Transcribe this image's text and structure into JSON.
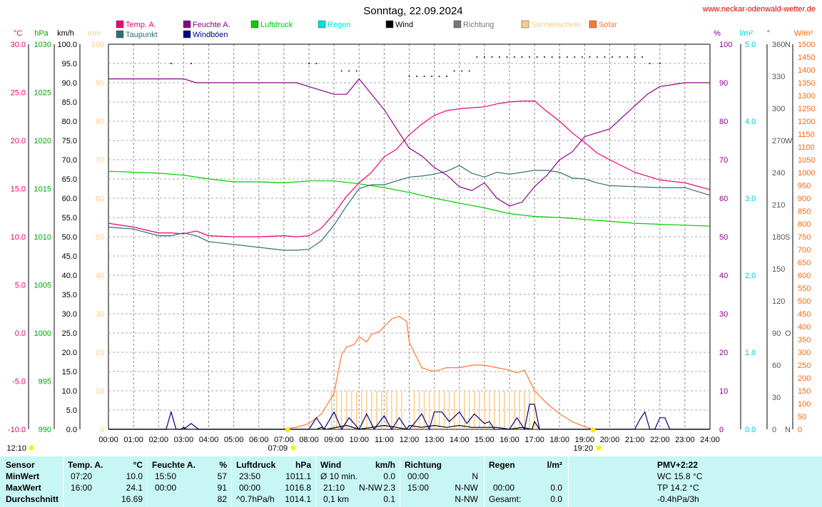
{
  "header": {
    "title": "Sonntag, 22.09.2024",
    "website": "www.neckar-odenwald-wetter.de"
  },
  "legend": [
    {
      "label": "Temp. A.",
      "color": "#ee0077"
    },
    {
      "label": "Taupunkt",
      "color": "#2f6f6f"
    },
    {
      "label": "Feuchte A.",
      "color": "#880088"
    },
    {
      "label": "Windböen",
      "color": "#000088"
    },
    {
      "label": "Luftdruck",
      "color": "#00cc00"
    },
    {
      "label": "Regen",
      "color": "#00e0e0"
    },
    {
      "label": "Wind",
      "color": "#000000"
    },
    {
      "label": "Richtung",
      "color": "#777777"
    },
    {
      "label": "Sonnenschein",
      "color": "#ffcc88"
    },
    {
      "label": "Solar",
      "color": "#ff7733"
    }
  ],
  "chart_data": {
    "type": "line",
    "title": "Sonntag, 22.09.2024",
    "x_labels": [
      "00:00",
      "01:00",
      "02:00",
      "03:00",
      "04:00",
      "05:00",
      "06:00",
      "07:00",
      "08:00",
      "09:00",
      "10:00",
      "11:00",
      "12:00",
      "13:00",
      "14:00",
      "15:00",
      "16:00",
      "17:00",
      "18:00",
      "19:00",
      "20:00",
      "21:00",
      "22:00",
      "23:00",
      "24:00"
    ],
    "x_range_hours": [
      0,
      24
    ],
    "axes": {
      "temp": {
        "unit": "°C",
        "color": "#ee0077",
        "min": -10,
        "max": 30,
        "ticks": [
          "30.0",
          "25.0",
          "20.0",
          "15.0",
          "10.0",
          "5.0",
          "0.0",
          "-5.0",
          "-10.0"
        ]
      },
      "pressure": {
        "unit": "hPa",
        "color": "#00aa00",
        "min": 990,
        "max": 1030,
        "ticks": [
          "1030",
          "1025",
          "1020",
          "1015",
          "1010",
          "1005",
          "1000",
          "995",
          "990"
        ]
      },
      "wind": {
        "unit": "km/h",
        "color": "#000000",
        "min": 0,
        "max": 100,
        "ticks": [
          "100.0",
          "95.0",
          "90.0",
          "85.0",
          "80.0",
          "75.0",
          "70.0",
          "65.0",
          "60.0",
          "55.0",
          "50.0",
          "45.0",
          "40.0",
          "35.0",
          "30.0",
          "25.0",
          "20.0",
          "15.0",
          "10.0",
          "5.0",
          "0.0"
        ]
      },
      "sunshine": {
        "unit": "min",
        "color": "#ffcc88",
        "min": 0,
        "max": 100,
        "ticks": [
          "100",
          "90",
          "80",
          "70",
          "60",
          "50",
          "40",
          "30",
          "20",
          "10",
          "0"
        ]
      },
      "humidity": {
        "unit": "%",
        "color": "#880088",
        "min": 0,
        "max": 100,
        "ticks": [
          "100",
          "90",
          "80",
          "70",
          "60",
          "50",
          "40",
          "30",
          "20",
          "10",
          "0"
        ]
      },
      "rain": {
        "unit": "l/m²",
        "color": "#00cccc",
        "min": 0,
        "max": 5,
        "ticks": [
          "5.0",
          "4.0",
          "3.0",
          "2.0",
          "1.0",
          "0.0"
        ]
      },
      "direction": {
        "unit": "°",
        "color": "#555555",
        "min": 0,
        "max": 360,
        "ticks": [
          "360",
          "330",
          "300",
          "270",
          "240",
          "210",
          "180",
          "150",
          "120",
          "90",
          "60",
          "30",
          "0"
        ],
        "compass": [
          "N",
          "W",
          "S",
          "O",
          "N"
        ]
      },
      "solar": {
        "unit": "W/m²",
        "color": "#ff6600",
        "min": 0,
        "max": 1500,
        "ticks": [
          "1500",
          "1450",
          "1400",
          "1350",
          "1300",
          "1250",
          "1200",
          "1150",
          "1100",
          "1050",
          "1000",
          "950",
          "900",
          "850",
          "800",
          "750",
          "700",
          "650",
          "600",
          "550",
          "500",
          "450",
          "400",
          "350",
          "300",
          "250",
          "200",
          "150",
          "100",
          "50",
          "0"
        ]
      }
    },
    "series": [
      {
        "name": "Temp. A.",
        "axis": "temp",
        "color": "#ee0077",
        "x": [
          0,
          1,
          2,
          2.5,
          3,
          3.5,
          4,
          5,
          6,
          7,
          7.5,
          8,
          8.5,
          9,
          9.5,
          10,
          10.5,
          11,
          11.5,
          12,
          12.5,
          13,
          13.5,
          14,
          14.5,
          15,
          15.5,
          16,
          16.5,
          17,
          17.5,
          18,
          18.5,
          19,
          19.5,
          20,
          21,
          22,
          23,
          24
        ],
        "y": [
          11.4,
          11.0,
          10.4,
          10.4,
          10.3,
          10.6,
          10.1,
          10.0,
          10.0,
          10.1,
          10.0,
          10.1,
          10.9,
          12.4,
          14.2,
          15.6,
          16.7,
          18.3,
          19.1,
          20.6,
          21.7,
          22.6,
          23.1,
          23.3,
          23.4,
          23.5,
          23.8,
          24.0,
          24.1,
          24.1,
          23.0,
          22.0,
          20.8,
          19.8,
          18.7,
          18.0,
          16.7,
          15.9,
          15.6,
          14.9
        ]
      },
      {
        "name": "Taupunkt",
        "axis": "temp",
        "color": "#2f6f6f",
        "x": [
          0,
          1,
          2,
          2.5,
          3,
          3.5,
          4,
          5,
          6,
          7,
          7.5,
          8,
          8.5,
          9,
          9.5,
          10,
          10.5,
          11,
          11.5,
          12,
          12.5,
          13,
          13.5,
          14,
          14.5,
          15,
          15.5,
          16,
          16.5,
          17,
          17.5,
          18,
          18.5,
          19,
          19.5,
          20,
          21,
          22,
          23,
          24
        ],
        "y": [
          11.0,
          10.8,
          10.1,
          10.1,
          10.4,
          10.1,
          9.5,
          9.2,
          8.9,
          8.6,
          8.6,
          8.7,
          9.6,
          11.2,
          13.2,
          15.0,
          15.4,
          15.4,
          15.8,
          16.2,
          16.3,
          16.5,
          16.8,
          17.4,
          16.6,
          16.2,
          16.7,
          16.5,
          16.7,
          16.9,
          16.9,
          16.7,
          16.1,
          16.0,
          15.6,
          15.3,
          15.2,
          15.1,
          15.1,
          14.3
        ]
      },
      {
        "name": "Feuchte A.",
        "axis": "humidity",
        "color": "#880088",
        "x": [
          0,
          1,
          2,
          2.5,
          3,
          3.5,
          4,
          5,
          6,
          7,
          7.5,
          8,
          8.5,
          9,
          9.5,
          10,
          10.5,
          11,
          11.5,
          12,
          12.5,
          13,
          13.5,
          14,
          14.5,
          15,
          15.5,
          16,
          16.5,
          17,
          17.5,
          18,
          18.5,
          19,
          19.5,
          20,
          20.5,
          21,
          21.5,
          22,
          23,
          24
        ],
        "y": [
          91,
          91,
          91,
          91,
          91,
          90,
          90,
          90,
          90,
          90,
          90,
          89,
          88,
          87,
          87,
          91,
          87,
          83,
          78,
          73,
          71,
          68,
          66,
          63,
          62,
          64,
          60,
          58,
          59,
          63,
          66,
          70,
          72,
          76,
          77,
          78,
          81,
          84,
          87,
          89,
          90,
          90
        ]
      },
      {
        "name": "Luftdruck",
        "axis": "pressure",
        "color": "#00cc00",
        "x": [
          0,
          1,
          2,
          3,
          4,
          5,
          6,
          7,
          8,
          9,
          10,
          11,
          12,
          13,
          14,
          15,
          16,
          17,
          18,
          19,
          20,
          21,
          22,
          23,
          24
        ],
        "y": [
          1016.8,
          1016.7,
          1016.6,
          1016.4,
          1016.0,
          1015.7,
          1015.7,
          1015.6,
          1015.8,
          1015.8,
          1015.5,
          1015.1,
          1014.6,
          1014.0,
          1013.5,
          1013.0,
          1012.4,
          1012.1,
          1012.0,
          1011.8,
          1011.6,
          1011.4,
          1011.3,
          1011.2,
          1011.1
        ]
      },
      {
        "name": "Solar",
        "axis": "solar",
        "color": "#ff7733",
        "x": [
          7,
          7.5,
          8,
          8.5,
          9,
          9.3,
          9.5,
          9.8,
          10,
          10.3,
          10.5,
          10.8,
          11,
          11.3,
          11.6,
          11.9,
          12,
          12.2,
          12.5,
          12.8,
          13,
          13.5,
          14,
          14.5,
          15,
          15.5,
          16,
          16.3,
          16.6,
          17,
          17.5,
          18,
          18.5,
          19,
          19.3
        ],
        "y": [
          2,
          8,
          22,
          60,
          140,
          290,
          320,
          330,
          360,
          340,
          370,
          380,
          400,
          430,
          440,
          420,
          340,
          300,
          240,
          230,
          225,
          240,
          240,
          250,
          250,
          240,
          230,
          220,
          230,
          150,
          100,
          60,
          30,
          10,
          2
        ]
      },
      {
        "name": "Sonnenschein",
        "axis": "sunshine",
        "color": "#ffcc88",
        "display": "bars",
        "x": [
          8.9,
          9.1,
          9.3,
          9.5,
          9.7,
          9.9,
          10.1,
          10.3,
          10.5,
          10.7,
          10.9,
          11.1,
          11.3,
          11.5,
          11.7,
          12.2,
          12.4,
          12.6,
          12.8,
          13.0,
          13.2,
          13.4,
          13.6,
          13.8,
          14.0,
          14.2,
          14.4,
          14.6,
          14.8,
          15.0,
          15.2,
          15.4,
          15.6,
          15.8,
          16.0,
          16.2,
          16.4,
          16.6,
          16.8,
          17.0
        ],
        "y": [
          10,
          10,
          10,
          10,
          10,
          10,
          10,
          10,
          10,
          10,
          10,
          10,
          10,
          10,
          10,
          10,
          10,
          10,
          10,
          10,
          10,
          10,
          10,
          10,
          10,
          10,
          10,
          10,
          10,
          10,
          10,
          10,
          10,
          10,
          10,
          10,
          10,
          10,
          10,
          10
        ]
      },
      {
        "name": "Wind",
        "axis": "wind",
        "color": "#000000",
        "x": [
          0,
          2.9,
          3,
          3.1,
          8.3,
          8.5,
          8.7,
          9.5,
          10,
          10.5,
          11,
          11.5,
          11.9,
          12,
          12.5,
          13,
          13.5,
          14,
          14.5,
          15,
          15.5,
          16,
          16.5,
          16.9,
          17,
          17.2,
          24
        ],
        "y": [
          0,
          0,
          0.5,
          0,
          0,
          0.5,
          0,
          1,
          0,
          0.5,
          1,
          0.5,
          0,
          1,
          0.5,
          1,
          0.5,
          1,
          0.5,
          0.5,
          0.5,
          0,
          0.5,
          0,
          2,
          0,
          0
        ]
      },
      {
        "name": "Windböen",
        "axis": "wind",
        "color": "#000088",
        "x": [
          0,
          2.3,
          2.5,
          2.7,
          3,
          3.3,
          3.6,
          7.5,
          8,
          8.3,
          8.6,
          9,
          9.3,
          9.6,
          10,
          10.3,
          10.6,
          11,
          11.3,
          11.6,
          11.9,
          12,
          12.2,
          12.5,
          12.8,
          13,
          13.3,
          13.6,
          14,
          14.3,
          14.6,
          15,
          15.2,
          15.4,
          16,
          16.3,
          16.6,
          16.8,
          17,
          17.2,
          17.4,
          20.5,
          21,
          21.2,
          21.4,
          21.6,
          21.8,
          22,
          22.2,
          22.4,
          24
        ],
        "y": [
          0,
          0,
          4.5,
          0,
          0,
          1.5,
          0,
          0,
          0,
          3,
          0,
          4.5,
          0,
          3,
          0,
          4,
          0,
          3.5,
          0,
          3,
          0,
          0,
          1.5,
          4,
          0,
          4.5,
          4.5,
          2,
          4.5,
          1.5,
          4,
          1.5,
          2,
          0,
          0,
          3,
          0,
          6.5,
          6.5,
          0,
          0,
          0,
          0,
          2.5,
          4.5,
          0,
          0,
          3,
          3,
          0,
          0
        ]
      },
      {
        "name": "Richtung",
        "axis": "direction",
        "color": "#444444",
        "display": "dots",
        "x": [
          2.5,
          3.3,
          8,
          8.3,
          9.3,
          9.6,
          9.9,
          12,
          12.3,
          12.6,
          12.9,
          13.2,
          13.5,
          13.8,
          14.1,
          14.4,
          14.7,
          15.0,
          15.3,
          15.6,
          15.9,
          16.2,
          16.5,
          16.8,
          17.1,
          17.4,
          17.7,
          18.0,
          18.3,
          18.6,
          18.9,
          19.2,
          19.5,
          19.8,
          20.1,
          20.4,
          20.7,
          21.0,
          21.3,
          21.6,
          22.0
        ],
        "y": [
          342,
          342,
          342,
          342,
          335,
          335,
          335,
          330,
          330,
          330,
          330,
          330,
          330,
          335,
          335,
          335,
          348,
          348,
          348,
          348,
          348,
          348,
          348,
          348,
          348,
          348,
          348,
          348,
          348,
          348,
          348,
          348,
          348,
          348,
          348,
          348,
          348,
          348,
          348,
          342,
          342
        ]
      }
    ],
    "markers": {
      "moonrise": "12:10",
      "sunrise": "07:09",
      "sunset": "19:20"
    },
    "grid": true
  },
  "table": {
    "row_labels": {
      "header": "Sensor",
      "min": "MinWert",
      "max": "MaxWert",
      "avg": "Durchschnitt"
    },
    "temp": {
      "title": "Temp. A.",
      "unit": "°C",
      "min_time": "07:20",
      "min_val": "10.0",
      "max_time": "16:00",
      "max_val": "24.1",
      "avg_val": "16.69"
    },
    "humidity": {
      "title": "Feuchte A.",
      "unit": "%",
      "min_time": "15:50",
      "min_val": "57",
      "max_time": "00:00",
      "max_val": "91",
      "avg_val": "82"
    },
    "pressure": {
      "title": "Luftdruck",
      "unit": "hPa",
      "min_time": "23:50",
      "min_val": "1011.1",
      "max_time": "00:00",
      "max_val": "1016.8",
      "avg_label": "^0.7hPa/h",
      "avg_val": "1014.1"
    },
    "wind": {
      "title": "Wind",
      "unit": "km/h",
      "r1_label": "Ø 10 min.",
      "r1_val": "0.0",
      "r2_time": "21:10",
      "r2_dir": "N-NW",
      "r2_val": "2.3",
      "r3_label": "0,1 km",
      "r3_val": "0.1"
    },
    "direction": {
      "title": "Richtung",
      "r1_time": "00:00",
      "r1_val": "N",
      "r2_time": "15:00",
      "r2_val": "N-NW",
      "r3_val": "N-NW"
    },
    "rain": {
      "title": "Regen",
      "unit": "l/m²",
      "r2_time": "00:00",
      "r2_val": "0.0",
      "r3_label": "Gesamt:",
      "r3_val": "0.0"
    },
    "pmv": {
      "title": "PMV+2:22",
      "wc": "WC 15.8 °C",
      "tp": "TP 14.2 °C",
      "trend": "-0.4hPa/3h"
    }
  }
}
